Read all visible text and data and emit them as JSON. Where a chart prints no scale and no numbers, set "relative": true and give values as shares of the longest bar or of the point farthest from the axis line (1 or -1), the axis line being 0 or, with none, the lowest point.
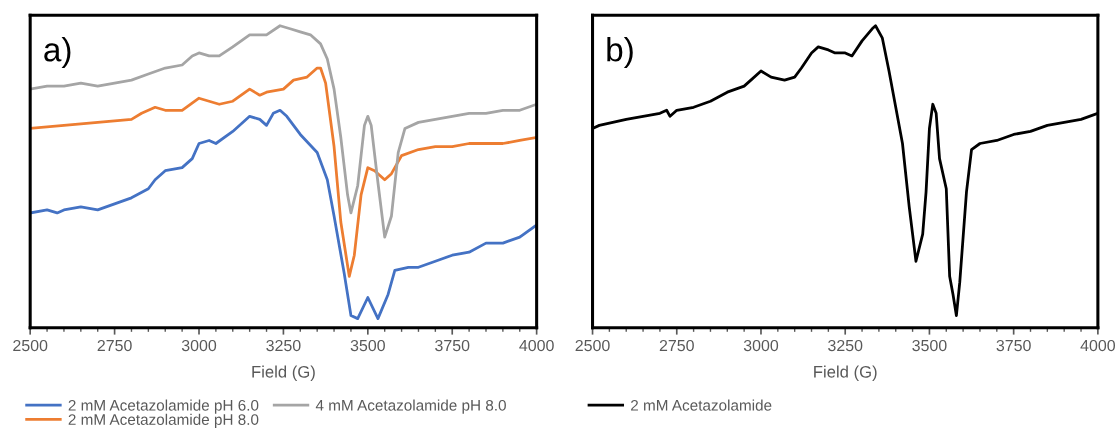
{
  "chart_data": [
    {
      "type": "line",
      "relative": true,
      "xlabel": "Field (G)",
      "xlim": [
        2500,
        4000
      ],
      "xticks": [
        2500,
        2750,
        3000,
        3250,
        3500,
        3750,
        4000
      ],
      "tick_labels": "x",
      "grid": false,
      "legend": "bottom",
      "marker": "none",
      "line_style": "solid",
      "annotations": [
        "a)"
      ],
      "series": [
        {
          "name": "2 mM Acetazolamide pH 6.0",
          "color": "#4472c4",
          "x": [
            2500,
            2550,
            2580,
            2600,
            2650,
            2700,
            2750,
            2800,
            2850,
            2870,
            2900,
            2950,
            2980,
            3000,
            3030,
            3050,
            3100,
            3150,
            3180,
            3200,
            3220,
            3240,
            3260,
            3300,
            3350,
            3380,
            3400,
            3430,
            3450,
            3470,
            3500,
            3530,
            3560,
            3580,
            3620,
            3650,
            3700,
            3750,
            3800,
            3850,
            3900,
            3950,
            4000
          ],
          "values": [
            0.38,
            0.39,
            0.38,
            0.39,
            0.4,
            0.39,
            0.41,
            0.43,
            0.46,
            0.49,
            0.52,
            0.53,
            0.56,
            0.61,
            0.62,
            0.61,
            0.65,
            0.7,
            0.69,
            0.67,
            0.71,
            0.72,
            0.7,
            0.64,
            0.58,
            0.49,
            0.37,
            0.18,
            0.04,
            0.03,
            0.1,
            0.03,
            0.11,
            0.19,
            0.2,
            0.2,
            0.22,
            0.24,
            0.25,
            0.28,
            0.28,
            0.3,
            0.34
          ]
        },
        {
          "name": "2 mM Acetazolamide pH 8.0",
          "color": "#ed7d31",
          "x": [
            2500,
            2600,
            2700,
            2800,
            2830,
            2870,
            2900,
            2950,
            3000,
            3030,
            3060,
            3100,
            3150,
            3180,
            3200,
            3250,
            3280,
            3320,
            3350,
            3360,
            3375,
            3400,
            3420,
            3445,
            3460,
            3480,
            3500,
            3520,
            3550,
            3570,
            3600,
            3650,
            3700,
            3750,
            3800,
            3850,
            3900,
            3950,
            4000
          ],
          "values": [
            0.66,
            0.67,
            0.68,
            0.69,
            0.71,
            0.73,
            0.72,
            0.72,
            0.76,
            0.75,
            0.74,
            0.75,
            0.79,
            0.77,
            0.78,
            0.79,
            0.82,
            0.83,
            0.86,
            0.86,
            0.81,
            0.6,
            0.35,
            0.17,
            0.24,
            0.44,
            0.53,
            0.52,
            0.49,
            0.51,
            0.57,
            0.59,
            0.6,
            0.6,
            0.61,
            0.61,
            0.61,
            0.62,
            0.63
          ]
        },
        {
          "name": "4 mM Acetazolamide pH 8.0",
          "color": "#a5a5a5",
          "x": [
            2500,
            2550,
            2600,
            2650,
            2700,
            2750,
            2800,
            2850,
            2900,
            2950,
            2980,
            3000,
            3030,
            3060,
            3100,
            3150,
            3180,
            3200,
            3240,
            3270,
            3300,
            3330,
            3360,
            3380,
            3400,
            3420,
            3440,
            3450,
            3470,
            3490,
            3500,
            3510,
            3530,
            3550,
            3570,
            3590,
            3610,
            3650,
            3700,
            3750,
            3800,
            3850,
            3900,
            3950,
            4000
          ],
          "values": [
            0.79,
            0.8,
            0.8,
            0.81,
            0.8,
            0.81,
            0.82,
            0.84,
            0.86,
            0.87,
            0.9,
            0.91,
            0.9,
            0.9,
            0.93,
            0.97,
            0.97,
            0.97,
            1.0,
            0.99,
            0.98,
            0.97,
            0.94,
            0.89,
            0.79,
            0.63,
            0.44,
            0.38,
            0.47,
            0.67,
            0.7,
            0.67,
            0.48,
            0.3,
            0.37,
            0.58,
            0.66,
            0.68,
            0.69,
            0.7,
            0.71,
            0.71,
            0.72,
            0.72,
            0.74
          ]
        }
      ]
    },
    {
      "type": "line",
      "relative": true,
      "xlabel": "Field (G)",
      "xlim": [
        2500,
        4000
      ],
      "xticks": [
        2500,
        2750,
        3000,
        3250,
        3500,
        3750,
        4000
      ],
      "tick_labels": "x",
      "grid": false,
      "legend": "bottom",
      "marker": "none",
      "line_style": "solid",
      "annotations": [
        "b)"
      ],
      "series": [
        {
          "name": "2 mM Acetazolamide",
          "color": "#000000",
          "x": [
            2500,
            2520,
            2600,
            2650,
            2700,
            2720,
            2730,
            2750,
            2800,
            2850,
            2900,
            2950,
            2970,
            3000,
            3030,
            3070,
            3100,
            3120,
            3150,
            3170,
            3200,
            3220,
            3250,
            3270,
            3300,
            3330,
            3340,
            3360,
            3380,
            3400,
            3420,
            3440,
            3460,
            3480,
            3490,
            3500,
            3510,
            3520,
            3530,
            3550,
            3560,
            3570,
            3580,
            3590,
            3610,
            3625,
            3650,
            3700,
            3750,
            3800,
            3850,
            3900,
            3950,
            4000
          ],
          "values": [
            0.66,
            0.67,
            0.69,
            0.7,
            0.71,
            0.72,
            0.7,
            0.72,
            0.73,
            0.75,
            0.78,
            0.8,
            0.82,
            0.85,
            0.83,
            0.82,
            0.83,
            0.86,
            0.91,
            0.93,
            0.92,
            0.91,
            0.91,
            0.9,
            0.95,
            0.99,
            1.0,
            0.96,
            0.85,
            0.73,
            0.61,
            0.4,
            0.22,
            0.31,
            0.45,
            0.66,
            0.74,
            0.71,
            0.56,
            0.46,
            0.17,
            0.11,
            0.04,
            0.15,
            0.45,
            0.59,
            0.61,
            0.62,
            0.64,
            0.65,
            0.67,
            0.68,
            0.69,
            0.71
          ]
        }
      ]
    }
  ]
}
